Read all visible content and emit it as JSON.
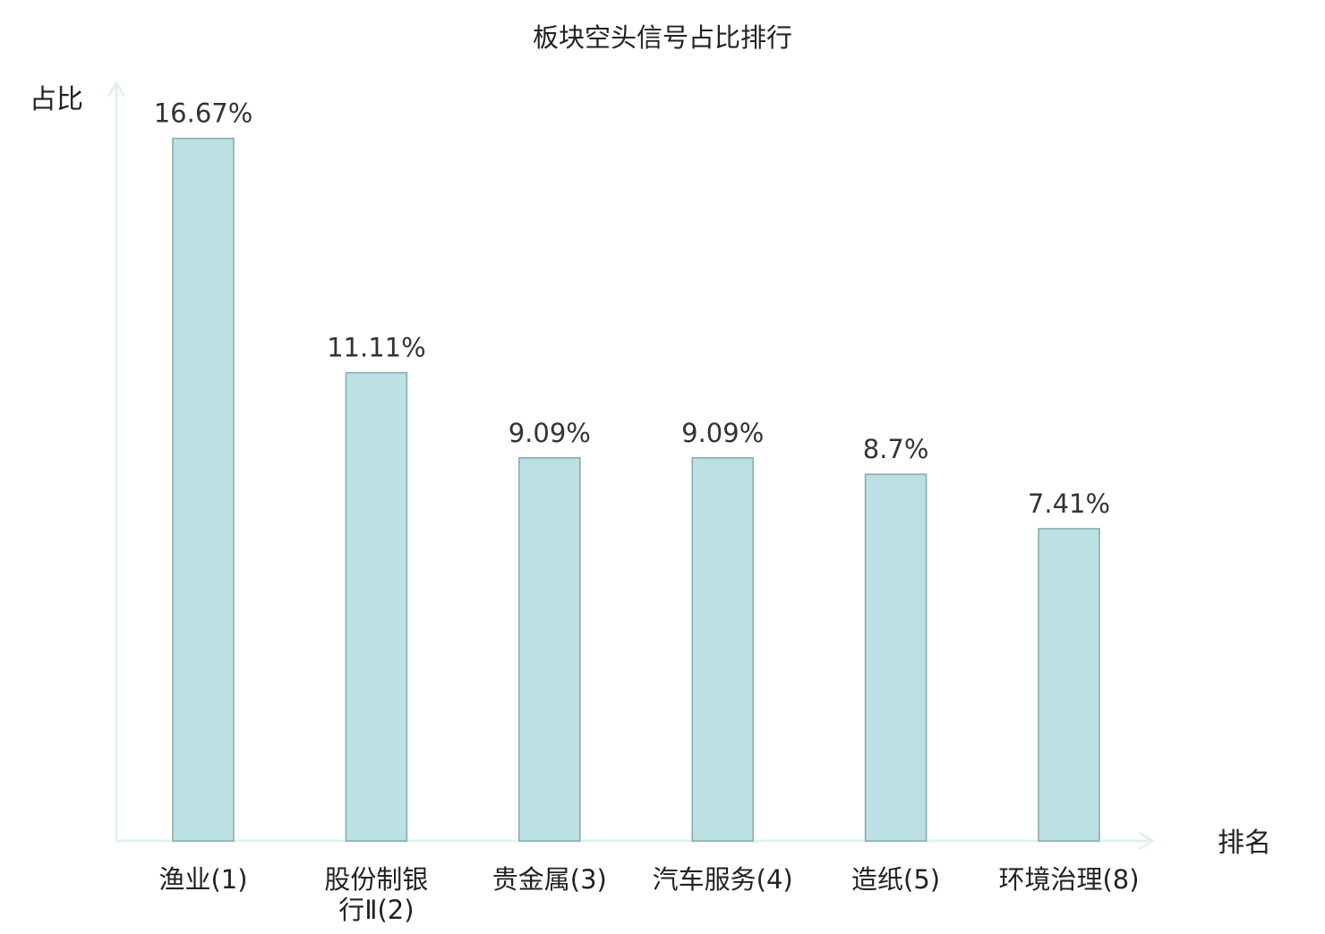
{
  "chart_data": {
    "type": "bar",
    "title": "板块空头信号占比排行",
    "xlabel": "排名",
    "ylabel": "占比",
    "ylim": [
      0,
      18.0
    ],
    "grid": false,
    "legend": "none",
    "categories": [
      [
        "渔业(1)"
      ],
      [
        "股份制银",
        "行Ⅱ(2)"
      ],
      [
        "贵金属(3)"
      ],
      [
        "汽车服务(4)"
      ],
      [
        "造纸(5)"
      ],
      [
        "环境治理(8)"
      ]
    ],
    "values": [
      16.67,
      11.11,
      9.09,
      9.09,
      8.7,
      7.41
    ],
    "value_labels": [
      "16.67%",
      "11.11%",
      "9.09%",
      "9.09%",
      "8.7%",
      "7.41%"
    ],
    "highlight_index": 5
  },
  "colors": {
    "bar_fill": "#bce0e3",
    "bar_stroke": "#86a8aa",
    "axis": "#e0f2f0",
    "text": "#222222",
    "highlight_text": "#e00000"
  }
}
